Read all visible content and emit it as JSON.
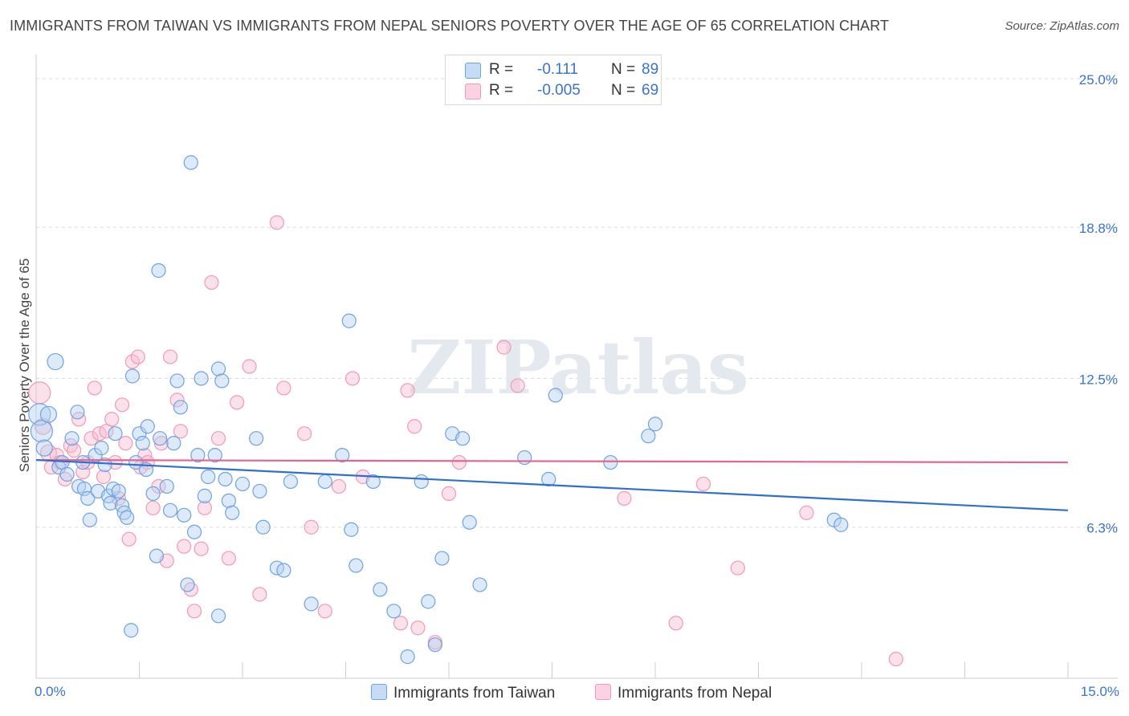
{
  "title": "IMMIGRANTS FROM TAIWAN VS IMMIGRANTS FROM NEPAL SENIORS POVERTY OVER THE AGE OF 65 CORRELATION CHART",
  "source": "Source: ZipAtlas.com",
  "watermark": "ZIPatlas",
  "legend": {
    "taiwan": {
      "r_label": "R =",
      "r_value": "-0.111",
      "n_label": "N =",
      "n_value": "89"
    },
    "nepal": {
      "r_label": "R =",
      "r_value": "-0.005",
      "n_label": "N =",
      "n_value": "69"
    }
  },
  "chart_data": {
    "type": "scatter",
    "title": "IMMIGRANTS FROM TAIWAN VS IMMIGRANTS FROM NEPAL SENIORS POVERTY OVER THE AGE OF 65 CORRELATION CHART",
    "xlabel": "",
    "ylabel": "Seniors Poverty Over the Age of 65",
    "xlim": [
      0,
      15
    ],
    "ylim": [
      0,
      25.6
    ],
    "x_tick_labels": [
      "0.0%",
      "15.0%"
    ],
    "y_ticks": [
      6.3,
      12.5,
      18.8,
      25.0
    ],
    "y_tick_labels": [
      "6.3%",
      "12.5%",
      "18.8%",
      "25.0%"
    ],
    "colors": {
      "taiwan": "#6fa2e0",
      "nepal": "#f09ab5",
      "taiwan_line": "#2f6fcf",
      "nepal_line": "#e3668f"
    },
    "series": [
      {
        "name": "Immigrants from Taiwan",
        "r": -0.111,
        "n": 89,
        "trend": {
          "x": [
            0,
            15
          ],
          "y": [
            9.1,
            7.0
          ]
        },
        "points": [
          [
            0.05,
            11.0,
            "L"
          ],
          [
            0.08,
            10.3,
            "L"
          ],
          [
            0.12,
            9.6,
            "M"
          ],
          [
            0.18,
            11.0,
            "M"
          ],
          [
            0.28,
            13.2,
            "M"
          ],
          [
            0.33,
            8.8,
            "S"
          ],
          [
            0.38,
            9.0,
            "S"
          ],
          [
            0.45,
            8.5,
            "S"
          ],
          [
            0.52,
            10.0,
            "S"
          ],
          [
            0.6,
            11.1,
            "S"
          ],
          [
            0.62,
            8.0,
            "S"
          ],
          [
            0.68,
            9.0,
            "S"
          ],
          [
            0.7,
            7.9,
            "S"
          ],
          [
            0.75,
            7.5,
            "S"
          ],
          [
            0.78,
            6.6,
            "S"
          ],
          [
            0.86,
            9.3,
            "S"
          ],
          [
            0.9,
            7.8,
            "S"
          ],
          [
            0.95,
            9.6,
            "S"
          ],
          [
            1.0,
            8.9,
            "S"
          ],
          [
            1.05,
            7.6,
            "S"
          ],
          [
            1.08,
            7.3,
            "S"
          ],
          [
            1.12,
            7.9,
            "S"
          ],
          [
            1.15,
            10.2,
            "S"
          ],
          [
            1.2,
            7.8,
            "S"
          ],
          [
            1.25,
            7.2,
            "S"
          ],
          [
            1.28,
            6.9,
            "S"
          ],
          [
            1.32,
            6.7,
            "S"
          ],
          [
            1.4,
            12.6,
            "S"
          ],
          [
            1.45,
            9.0,
            "S"
          ],
          [
            1.5,
            10.2,
            "S"
          ],
          [
            1.55,
            9.8,
            "S"
          ],
          [
            1.6,
            8.7,
            "S"
          ],
          [
            1.62,
            10.5,
            "S"
          ],
          [
            1.7,
            7.7,
            "S"
          ],
          [
            1.75,
            5.1,
            "S"
          ],
          [
            1.78,
            17.0,
            "S"
          ],
          [
            1.8,
            10.0,
            "S"
          ],
          [
            1.9,
            8.0,
            "S"
          ],
          [
            1.95,
            7.0,
            "S"
          ],
          [
            2.0,
            9.8,
            "S"
          ],
          [
            2.05,
            12.4,
            "S"
          ],
          [
            2.1,
            11.3,
            "S"
          ],
          [
            2.15,
            6.8,
            "S"
          ],
          [
            2.2,
            3.9,
            "S"
          ],
          [
            2.25,
            21.5,
            "S"
          ],
          [
            2.3,
            6.1,
            "S"
          ],
          [
            2.35,
            9.3,
            "S"
          ],
          [
            2.4,
            12.5,
            "S"
          ],
          [
            2.45,
            7.6,
            "S"
          ],
          [
            2.5,
            8.4,
            "S"
          ],
          [
            2.6,
            9.3,
            "S"
          ],
          [
            2.65,
            12.9,
            "S"
          ],
          [
            2.7,
            12.4,
            "S"
          ],
          [
            2.75,
            8.3,
            "S"
          ],
          [
            2.8,
            7.4,
            "S"
          ],
          [
            2.85,
            6.9,
            "S"
          ],
          [
            3.0,
            8.1,
            "S"
          ],
          [
            3.2,
            10.0,
            "S"
          ],
          [
            3.25,
            7.8,
            "S"
          ],
          [
            3.3,
            6.3,
            "S"
          ],
          [
            3.5,
            4.6,
            "S"
          ],
          [
            3.6,
            4.5,
            "S"
          ],
          [
            3.7,
            8.2,
            "S"
          ],
          [
            4.0,
            3.1,
            "S"
          ],
          [
            4.2,
            8.2,
            "S"
          ],
          [
            4.45,
            9.3,
            "S"
          ],
          [
            4.55,
            14.9,
            "S"
          ],
          [
            4.58,
            6.2,
            "S"
          ],
          [
            4.65,
            4.7,
            "S"
          ],
          [
            4.9,
            8.2,
            "S"
          ],
          [
            5.0,
            3.7,
            "S"
          ],
          [
            5.2,
            2.8,
            "S"
          ],
          [
            5.4,
            0.9,
            "S"
          ],
          [
            5.6,
            8.2,
            "S"
          ],
          [
            5.7,
            3.2,
            "S"
          ],
          [
            5.8,
            1.4,
            "S"
          ],
          [
            5.9,
            5.0,
            "S"
          ],
          [
            6.05,
            10.2,
            "S"
          ],
          [
            6.2,
            10.0,
            "S"
          ],
          [
            6.3,
            6.5,
            "S"
          ],
          [
            6.45,
            3.9,
            "S"
          ],
          [
            7.1,
            9.2,
            "S"
          ],
          [
            7.45,
            8.3,
            "S"
          ],
          [
            7.55,
            11.8,
            "S"
          ],
          [
            8.35,
            9.0,
            "S"
          ],
          [
            8.9,
            10.1,
            "S"
          ],
          [
            9.0,
            10.6,
            "S"
          ],
          [
            11.6,
            6.6,
            "S"
          ],
          [
            11.7,
            6.4,
            "S"
          ],
          [
            2.65,
            2.6,
            "S"
          ],
          [
            1.38,
            2.0,
            "S"
          ]
        ]
      },
      {
        "name": "Immigrants from Nepal",
        "r": -0.005,
        "n": 69,
        "trend": {
          "x": [
            0,
            15
          ],
          "y": [
            9.1,
            9.0
          ]
        },
        "points": [
          [
            0.05,
            11.9,
            "L"
          ],
          [
            0.1,
            10.5,
            "M"
          ],
          [
            0.18,
            9.4,
            "M"
          ],
          [
            0.22,
            8.8,
            "S"
          ],
          [
            0.3,
            9.3,
            "S"
          ],
          [
            0.35,
            9.0,
            "S"
          ],
          [
            0.42,
            8.3,
            "S"
          ],
          [
            0.5,
            9.7,
            "S"
          ],
          [
            0.55,
            9.5,
            "S"
          ],
          [
            0.62,
            10.8,
            "S"
          ],
          [
            0.68,
            8.6,
            "S"
          ],
          [
            0.75,
            9.0,
            "S"
          ],
          [
            0.8,
            10.0,
            "S"
          ],
          [
            0.85,
            12.1,
            "S"
          ],
          [
            0.92,
            10.2,
            "S"
          ],
          [
            0.98,
            8.4,
            "S"
          ],
          [
            1.02,
            10.3,
            "S"
          ],
          [
            1.1,
            10.8,
            "S"
          ],
          [
            1.15,
            9.0,
            "S"
          ],
          [
            1.2,
            7.5,
            "S"
          ],
          [
            1.25,
            11.4,
            "S"
          ],
          [
            1.3,
            9.8,
            "S"
          ],
          [
            1.35,
            5.8,
            "S"
          ],
          [
            1.4,
            13.2,
            "S"
          ],
          [
            1.48,
            13.4,
            "S"
          ],
          [
            1.52,
            8.8,
            "S"
          ],
          [
            1.58,
            9.3,
            "S"
          ],
          [
            1.62,
            9.0,
            "S"
          ],
          [
            1.7,
            7.1,
            "S"
          ],
          [
            1.78,
            8.0,
            "S"
          ],
          [
            1.82,
            9.8,
            "S"
          ],
          [
            1.9,
            4.9,
            "S"
          ],
          [
            1.95,
            13.4,
            "S"
          ],
          [
            2.05,
            11.6,
            "S"
          ],
          [
            2.1,
            10.3,
            "S"
          ],
          [
            2.15,
            5.5,
            "S"
          ],
          [
            2.25,
            3.7,
            "S"
          ],
          [
            2.3,
            2.8,
            "S"
          ],
          [
            2.4,
            5.4,
            "S"
          ],
          [
            2.45,
            7.1,
            "S"
          ],
          [
            2.55,
            16.5,
            "S"
          ],
          [
            2.65,
            10.0,
            "S"
          ],
          [
            2.8,
            5.0,
            "S"
          ],
          [
            2.92,
            11.5,
            "S"
          ],
          [
            3.1,
            13.0,
            "S"
          ],
          [
            3.25,
            3.5,
            "S"
          ],
          [
            3.5,
            19.0,
            "S"
          ],
          [
            3.6,
            12.1,
            "S"
          ],
          [
            3.9,
            10.2,
            "S"
          ],
          [
            4.0,
            6.3,
            "S"
          ],
          [
            4.2,
            2.8,
            "S"
          ],
          [
            4.4,
            8.0,
            "S"
          ],
          [
            4.6,
            12.5,
            "S"
          ],
          [
            4.75,
            8.4,
            "S"
          ],
          [
            5.3,
            2.3,
            "S"
          ],
          [
            5.4,
            12.0,
            "S"
          ],
          [
            5.5,
            10.5,
            "S"
          ],
          [
            5.55,
            2.1,
            "S"
          ],
          [
            5.8,
            1.5,
            "S"
          ],
          [
            6.0,
            7.7,
            "S"
          ],
          [
            6.15,
            9.0,
            "S"
          ],
          [
            6.8,
            13.8,
            "S"
          ],
          [
            7.0,
            12.2,
            "S"
          ],
          [
            8.55,
            7.5,
            "S"
          ],
          [
            9.3,
            2.3,
            "S"
          ],
          [
            9.7,
            8.1,
            "S"
          ],
          [
            10.2,
            4.6,
            "S"
          ],
          [
            11.2,
            6.9,
            "S"
          ],
          [
            12.5,
            0.8,
            "S"
          ]
        ]
      }
    ]
  },
  "bottom_legend": {
    "taiwan": "Immigrants from Taiwan",
    "nepal": "Immigrants from Nepal"
  }
}
